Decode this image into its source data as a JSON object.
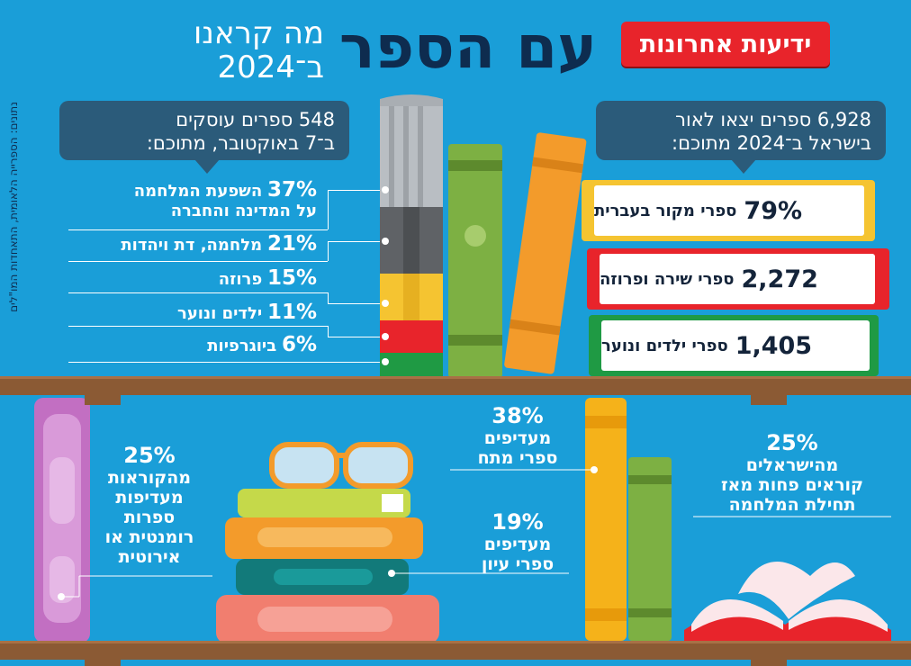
{
  "header": {
    "brand": "ידיעות אחרונות",
    "title": "עם הספר",
    "subtitle_line1": "מה קראנו",
    "subtitle_line2": "ב־2024"
  },
  "credit": "נתונים: הספרייה הלאומית, התאחדות המו\"לים",
  "left_callout": {
    "line1": "548 ספרים עוסקים",
    "line2": "ב־7 באוקטובר, מתוכם:"
  },
  "left_stats": [
    {
      "pct": "37%",
      "label": "השפעת המלחמה",
      "label2": "על המדינה והחברה"
    },
    {
      "pct": "21%",
      "label": "מלחמה, דת ויהדות",
      "label2": ""
    },
    {
      "pct": "15%",
      "label": "פרוזה",
      "label2": ""
    },
    {
      "pct": "11%",
      "label": "ילדים ונוער",
      "label2": ""
    },
    {
      "pct": "6%",
      "label": "ביוגרפיות",
      "label2": ""
    }
  ],
  "right_callout": {
    "line1": "6,928 ספרים יצאו לאור",
    "line2": "בישראל ב־2024 מתוכם:"
  },
  "right_books": [
    {
      "num": "79%",
      "text": "ספרי מקור בעברית",
      "color": "#f5c431"
    },
    {
      "num": "2,272",
      "text": "ספרי שירה ופרוזה",
      "color": "#e8242b"
    },
    {
      "num": "1,405",
      "text": "ספרי ילדים ונוער",
      "color": "#1f9a44"
    }
  ],
  "lower": {
    "romance": {
      "pct": "25%",
      "l1": "מהקוראות",
      "l2": "מעדיפות",
      "l3": "ספרות",
      "l4": "רומנטית או",
      "l5": "אירוטית"
    },
    "thriller": {
      "pct": "38%",
      "l1": "מעדיפים",
      "l2": "ספרי מתח"
    },
    "nonfiction": {
      "pct": "19%",
      "l1": "מעדיפים",
      "l2": "ספרי עיון"
    },
    "israelis": {
      "pct": "25%",
      "l1": "מהישראלים",
      "l2": "קוראים פחות מאז",
      "l3": "תחילת המלחמה"
    }
  },
  "colors": {
    "background": "#1a9ed8",
    "navy": "#0e2c4f",
    "red": "#e8242b",
    "yellow": "#f5c431",
    "green": "#1f9a44",
    "shelf": "#8b5a34"
  }
}
